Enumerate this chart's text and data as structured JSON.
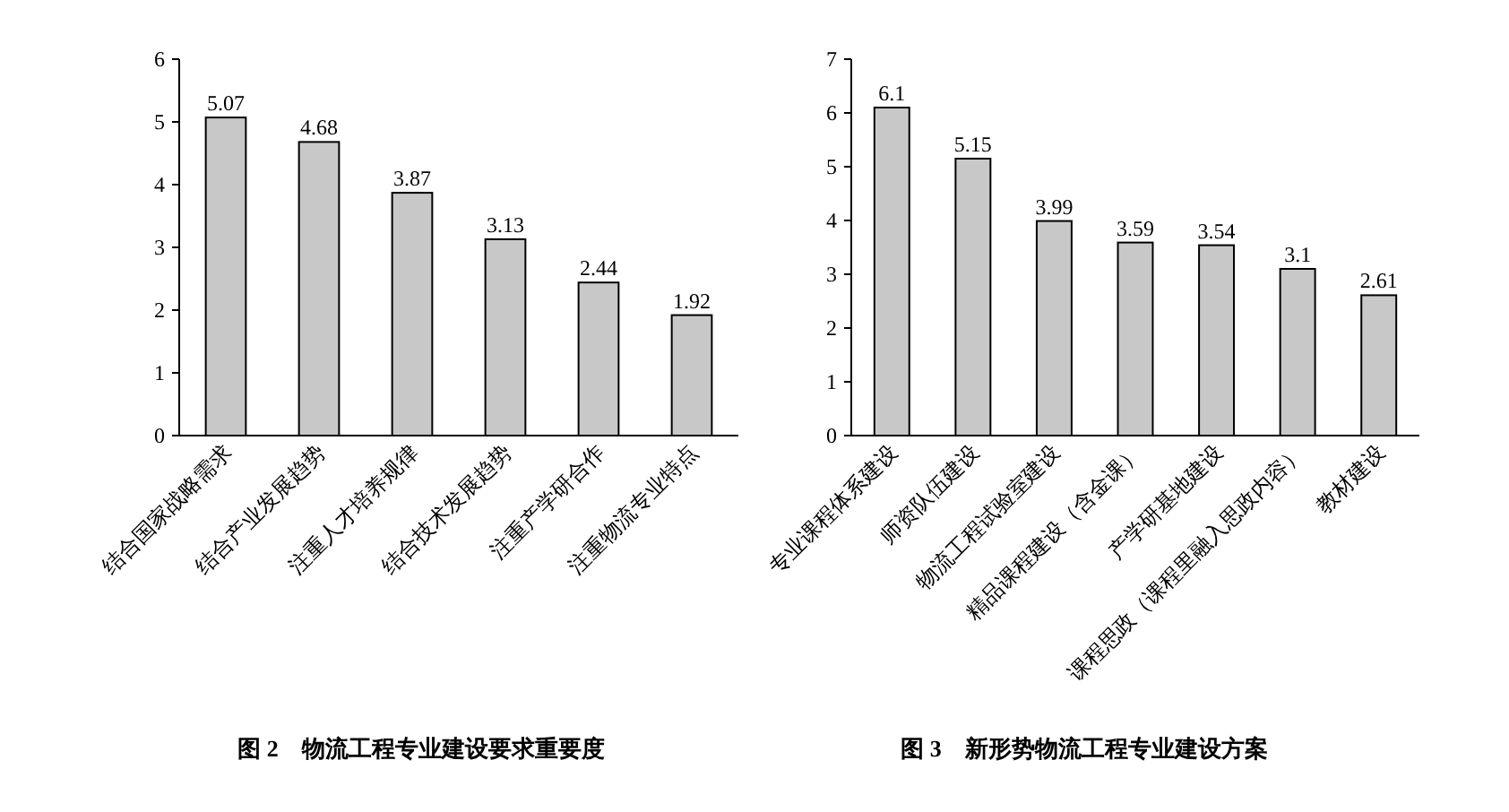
{
  "chart_data": [
    {
      "type": "bar",
      "title": "图 2　物流工程专业建设要求重要度",
      "categories": [
        "结合国家战略需求",
        "结合产业发展趋势",
        "注重人才培养规律",
        "结合技术发展趋势",
        "注重产学研合作",
        "注重物流专业特点"
      ],
      "values": [
        5.07,
        4.68,
        3.87,
        3.13,
        2.44,
        1.92
      ],
      "color": "#c8c8c8",
      "ylim": [
        0,
        6
      ],
      "yticks": [
        0,
        1,
        2,
        3,
        4,
        5,
        6
      ],
      "data_labels": true
    },
    {
      "type": "bar",
      "title": "图 3　新形势物流工程专业建设方案",
      "categories": [
        "专业课程体系建设",
        "师资队伍建设",
        "物流工程试验室建设",
        "精品课程建设（含金课）",
        "产学研基地建设",
        "课程思政（课程里融入思政内容）",
        "教材建设"
      ],
      "values": [
        6.1,
        5.15,
        3.99,
        3.59,
        3.54,
        3.1,
        2.61
      ],
      "color": "#c8c8c8",
      "ylim": [
        0,
        7
      ],
      "yticks": [
        0,
        1,
        2,
        3,
        4,
        5,
        6,
        7
      ],
      "data_labels": true
    }
  ]
}
